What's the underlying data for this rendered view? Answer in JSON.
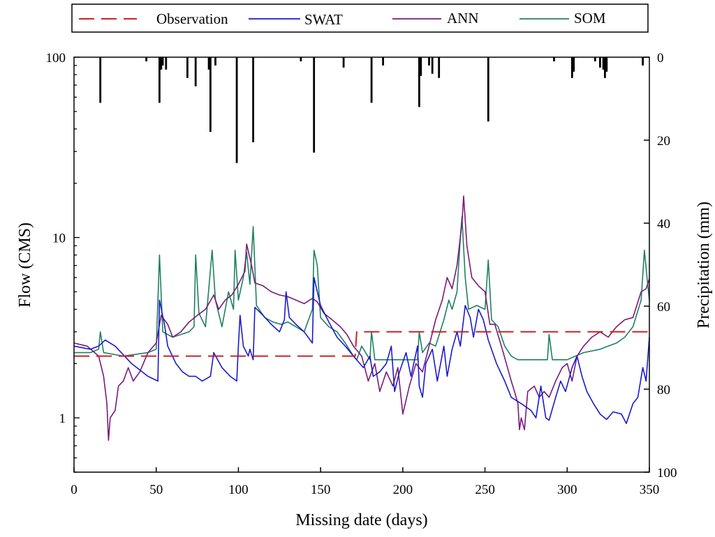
{
  "chart_data": {
    "type": "line",
    "title": "",
    "xlabel": "Missing date (days)",
    "ylabel": "Flow (CMS)",
    "y2label": "Precipitation (mm)",
    "xlim": [
      0,
      350
    ],
    "ylim": [
      0.5,
      100
    ],
    "yscale": "log",
    "y2lim": [
      0,
      100
    ],
    "y2_inverted": true,
    "grid": false,
    "legend_position": "top",
    "x_ticks": [
      0,
      50,
      100,
      150,
      200,
      250,
      300,
      350
    ],
    "y_ticks": [
      {
        "value": 1,
        "label": "1"
      },
      {
        "value": 10,
        "label": "10"
      },
      {
        "value": 100,
        "label": "100"
      }
    ],
    "y2_ticks": [
      0,
      20,
      40,
      60,
      80,
      100
    ],
    "colors": {
      "observation": "#cc2222",
      "swat": "#1a1acc",
      "ann": "#7a1a7a",
      "som": "#1f8060",
      "precip": "#000000"
    },
    "series": [
      {
        "name": "Observation",
        "style": "dashed",
        "points": [
          [
            0,
            2.2
          ],
          [
            171,
            2.2
          ],
          [
            172,
            3.0
          ],
          [
            350,
            3.0
          ]
        ]
      },
      {
        "name": "SWAT",
        "style": "solid",
        "points": [
          [
            0,
            2.5
          ],
          [
            10,
            2.4
          ],
          [
            15,
            2.5
          ],
          [
            19,
            2.7
          ],
          [
            25,
            2.5
          ],
          [
            35,
            2.0
          ],
          [
            45,
            1.7
          ],
          [
            51,
            1.6
          ],
          [
            52,
            4.5
          ],
          [
            55,
            3.3
          ],
          [
            57,
            2.5
          ],
          [
            62,
            2.0
          ],
          [
            66,
            1.8
          ],
          [
            70,
            1.7
          ],
          [
            74,
            1.7
          ],
          [
            78,
            1.6
          ],
          [
            83,
            1.7
          ],
          [
            85,
            2.3
          ],
          [
            90,
            1.9
          ],
          [
            95,
            1.7
          ],
          [
            99,
            1.6
          ],
          [
            100,
            2.5
          ],
          [
            101,
            3.7
          ],
          [
            103,
            2.5
          ],
          [
            106,
            2.2
          ],
          [
            107,
            2.4
          ],
          [
            109,
            2.1
          ],
          [
            110,
            4.1
          ],
          [
            115,
            3.7
          ],
          [
            120,
            3.3
          ],
          [
            125,
            3.0
          ],
          [
            128,
            3.5
          ],
          [
            129,
            5.0
          ],
          [
            131,
            3.6
          ],
          [
            135,
            3.3
          ],
          [
            140,
            3.0
          ],
          [
            145,
            2.6
          ],
          [
            146,
            6.0
          ],
          [
            150,
            4.2
          ],
          [
            155,
            3.4
          ],
          [
            160,
            2.8
          ],
          [
            165,
            2.5
          ],
          [
            170,
            2.2
          ],
          [
            176,
            1.9
          ],
          [
            180,
            2.2
          ],
          [
            182,
            1.7
          ],
          [
            186,
            1.8
          ],
          [
            190,
            2.0
          ],
          [
            193,
            2.5
          ],
          [
            195,
            1.4
          ],
          [
            198,
            1.8
          ],
          [
            202,
            2.3
          ],
          [
            205,
            1.7
          ],
          [
            209,
            2.5
          ],
          [
            210,
            1.5
          ],
          [
            212,
            1.3
          ],
          [
            214,
            2.0
          ],
          [
            218,
            2.4
          ],
          [
            221,
            1.6
          ],
          [
            225,
            2.5
          ],
          [
            227,
            1.7
          ],
          [
            230,
            2.4
          ],
          [
            233,
            3.0
          ],
          [
            235,
            2.5
          ],
          [
            238,
            4.2
          ],
          [
            241,
            3.6
          ],
          [
            243,
            2.8
          ],
          [
            246,
            4.0
          ],
          [
            249,
            3.5
          ],
          [
            252,
            2.7
          ],
          [
            257,
            2.0
          ],
          [
            262,
            1.6
          ],
          [
            266,
            1.3
          ],
          [
            272,
            1.2
          ],
          [
            278,
            1.1
          ],
          [
            281,
            1.0
          ],
          [
            284,
            1.5
          ],
          [
            287,
            1.0
          ],
          [
            289,
            0.97
          ],
          [
            293,
            1.3
          ],
          [
            296,
            1.6
          ],
          [
            299,
            1.4
          ],
          [
            303,
            1.9
          ],
          [
            306,
            2.2
          ],
          [
            309,
            1.7
          ],
          [
            312,
            1.4
          ],
          [
            316,
            1.2
          ],
          [
            320,
            1.05
          ],
          [
            324,
            0.98
          ],
          [
            328,
            1.08
          ],
          [
            333,
            1.05
          ],
          [
            336,
            0.93
          ],
          [
            340,
            1.2
          ],
          [
            343,
            1.3
          ],
          [
            346,
            1.9
          ],
          [
            348,
            1.6
          ],
          [
            350,
            2.8
          ]
        ]
      },
      {
        "name": "ANN",
        "style": "solid",
        "points": [
          [
            0,
            2.6
          ],
          [
            8,
            2.5
          ],
          [
            15,
            2.2
          ],
          [
            18,
            1.7
          ],
          [
            20,
            1.2
          ],
          [
            21,
            0.75
          ],
          [
            22,
            1.0
          ],
          [
            25,
            1.1
          ],
          [
            27,
            1.5
          ],
          [
            30,
            1.6
          ],
          [
            33,
            1.9
          ],
          [
            36,
            1.6
          ],
          [
            40,
            1.8
          ],
          [
            45,
            2.3
          ],
          [
            50,
            2.6
          ],
          [
            53,
            3.7
          ],
          [
            57,
            3.3
          ],
          [
            60,
            2.8
          ],
          [
            65,
            3.0
          ],
          [
            70,
            3.4
          ],
          [
            75,
            3.7
          ],
          [
            80,
            4.0
          ],
          [
            85,
            4.8
          ],
          [
            88,
            4.0
          ],
          [
            92,
            4.5
          ],
          [
            96,
            4.8
          ],
          [
            100,
            5.5
          ],
          [
            104,
            6.5
          ],
          [
            105,
            9.2
          ],
          [
            108,
            7.0
          ],
          [
            110,
            5.6
          ],
          [
            115,
            5.4
          ],
          [
            120,
            5.0
          ],
          [
            125,
            4.8
          ],
          [
            130,
            4.7
          ],
          [
            135,
            4.5
          ],
          [
            140,
            4.3
          ],
          [
            145,
            4.6
          ],
          [
            148,
            4.4
          ],
          [
            152,
            3.8
          ],
          [
            157,
            3.5
          ],
          [
            162,
            3.2
          ],
          [
            166,
            2.9
          ],
          [
            170,
            2.5
          ],
          [
            175,
            2.2
          ],
          [
            179,
            1.6
          ],
          [
            183,
            2.0
          ],
          [
            186,
            1.4
          ],
          [
            190,
            1.8
          ],
          [
            194,
            1.5
          ],
          [
            197,
            1.9
          ],
          [
            200,
            1.05
          ],
          [
            204,
            1.5
          ],
          [
            208,
            2.0
          ],
          [
            212,
            1.8
          ],
          [
            216,
            2.5
          ],
          [
            220,
            3.5
          ],
          [
            224,
            4.5
          ],
          [
            227,
            6.0
          ],
          [
            230,
            5.2
          ],
          [
            233,
            7.0
          ],
          [
            236,
            12.0
          ],
          [
            237,
            17.0
          ],
          [
            239,
            9.0
          ],
          [
            242,
            6.0
          ],
          [
            246,
            5.4
          ],
          [
            250,
            5.0
          ],
          [
            253,
            3.3
          ],
          [
            256,
            3.3
          ],
          [
            260,
            2.5
          ],
          [
            263,
            2.0
          ],
          [
            266,
            1.6
          ],
          [
            268,
            1.4
          ],
          [
            270,
            1.2
          ],
          [
            271,
            0.86
          ],
          [
            272,
            1.0
          ],
          [
            274,
            0.86
          ],
          [
            276,
            1.4
          ],
          [
            280,
            1.5
          ],
          [
            283,
            1.3
          ],
          [
            286,
            1.4
          ],
          [
            289,
            1.3
          ],
          [
            293,
            1.6
          ],
          [
            297,
            1.9
          ],
          [
            300,
            2.0
          ],
          [
            303,
            1.6
          ],
          [
            306,
            2.2
          ],
          [
            310,
            2.5
          ],
          [
            315,
            2.8
          ],
          [
            320,
            3.0
          ],
          [
            325,
            2.8
          ],
          [
            330,
            3.2
          ],
          [
            335,
            3.5
          ],
          [
            340,
            3.6
          ],
          [
            345,
            5.0
          ],
          [
            348,
            5.2
          ],
          [
            350,
            5.9
          ]
        ]
      },
      {
        "name": "SOM",
        "style": "solid",
        "points": [
          [
            0,
            2.3
          ],
          [
            10,
            2.3
          ],
          [
            15,
            2.4
          ],
          [
            16,
            3.0
          ],
          [
            18,
            2.3
          ],
          [
            30,
            2.2
          ],
          [
            45,
            2.3
          ],
          [
            50,
            2.4
          ],
          [
            52,
            8.0
          ],
          [
            54,
            3.0
          ],
          [
            60,
            2.8
          ],
          [
            65,
            2.9
          ],
          [
            70,
            3.0
          ],
          [
            73,
            3.2
          ],
          [
            74,
            8.0
          ],
          [
            76,
            3.8
          ],
          [
            80,
            3.2
          ],
          [
            84,
            8.5
          ],
          [
            86,
            4.5
          ],
          [
            90,
            3.2
          ],
          [
            94,
            5.0
          ],
          [
            97,
            4.0
          ],
          [
            98,
            8.5
          ],
          [
            100,
            4.5
          ],
          [
            103,
            6.0
          ],
          [
            105,
            8.3
          ],
          [
            107,
            5.5
          ],
          [
            109,
            11.5
          ],
          [
            111,
            4.2
          ],
          [
            116,
            3.6
          ],
          [
            121,
            3.4
          ],
          [
            126,
            3.3
          ],
          [
            130,
            3.4
          ],
          [
            135,
            3.2
          ],
          [
            140,
            3.0
          ],
          [
            145,
            4.0
          ],
          [
            146,
            8.5
          ],
          [
            148,
            7.0
          ],
          [
            150,
            3.6
          ],
          [
            155,
            3.2
          ],
          [
            160,
            3.0
          ],
          [
            165,
            2.6
          ],
          [
            170,
            2.2
          ],
          [
            172,
            2.1
          ],
          [
            175,
            2.5
          ],
          [
            180,
            2.1
          ],
          [
            181,
            3.0
          ],
          [
            183,
            2.1
          ],
          [
            190,
            2.1
          ],
          [
            200,
            2.1
          ],
          [
            209,
            2.1
          ],
          [
            210,
            3.0
          ],
          [
            212,
            2.3
          ],
          [
            216,
            2.6
          ],
          [
            220,
            2.5
          ],
          [
            225,
            3.5
          ],
          [
            228,
            4.5
          ],
          [
            230,
            4.0
          ],
          [
            233,
            5.0
          ],
          [
            235,
            10.0
          ],
          [
            236,
            13.0
          ],
          [
            238,
            6.0
          ],
          [
            240,
            4.0
          ],
          [
            245,
            4.2
          ],
          [
            250,
            4.0
          ],
          [
            252,
            7.5
          ],
          [
            254,
            3.5
          ],
          [
            258,
            3.2
          ],
          [
            262,
            2.5
          ],
          [
            266,
            2.2
          ],
          [
            270,
            2.1
          ],
          [
            280,
            2.1
          ],
          [
            288,
            2.1
          ],
          [
            289,
            2.9
          ],
          [
            291,
            2.1
          ],
          [
            300,
            2.1
          ],
          [
            305,
            2.2
          ],
          [
            310,
            2.3
          ],
          [
            320,
            2.4
          ],
          [
            325,
            2.5
          ],
          [
            330,
            2.6
          ],
          [
            335,
            2.8
          ],
          [
            340,
            3.2
          ],
          [
            345,
            4.5
          ],
          [
            347,
            8.5
          ],
          [
            349,
            5.5
          ],
          [
            350,
            4.5
          ]
        ]
      }
    ],
    "precipitation": [
      [
        16,
        11.0
      ],
      [
        44,
        1.0
      ],
      [
        52,
        11.0
      ],
      [
        53,
        3.0
      ],
      [
        54,
        2.0
      ],
      [
        56,
        3.0
      ],
      [
        69,
        5.0
      ],
      [
        74,
        7.0
      ],
      [
        82,
        3.0
      ],
      [
        83,
        18.0
      ],
      [
        86,
        2.0
      ],
      [
        99,
        25.5
      ],
      [
        109,
        20.5
      ],
      [
        138,
        1.0
      ],
      [
        146,
        23.0
      ],
      [
        164,
        2.5
      ],
      [
        181,
        11.0
      ],
      [
        188,
        2.0
      ],
      [
        210,
        12.0
      ],
      [
        211,
        4.5
      ],
      [
        216,
        2.0
      ],
      [
        218,
        4.0
      ],
      [
        222,
        5.0
      ],
      [
        252,
        15.5
      ],
      [
        292,
        1.0
      ],
      [
        303,
        5.0
      ],
      [
        304,
        3.5
      ],
      [
        317,
        1.0
      ],
      [
        320,
        2.5
      ],
      [
        322,
        3.0
      ],
      [
        323,
        5.0
      ],
      [
        324,
        3.5
      ],
      [
        346,
        2.0
      ]
    ],
    "legend": [
      "Observation",
      "SWAT",
      "ANN",
      "SOM"
    ]
  }
}
